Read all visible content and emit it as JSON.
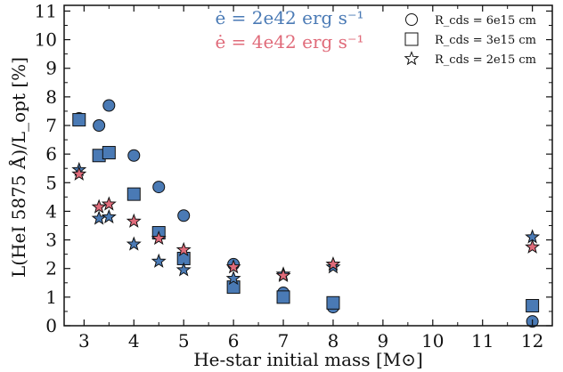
{
  "chart_data": {
    "type": "scatter",
    "xlabel": "He-star initial mass [M⊙]",
    "ylabel": "L(HeI 5875 Å)/L_opt [%]",
    "xlim": [
      2.6,
      12.4
    ],
    "ylim": [
      0,
      11.2
    ],
    "xticks": [
      3,
      4,
      5,
      6,
      7,
      8,
      9,
      10,
      11,
      12
    ],
    "yticks": [
      0,
      1,
      2,
      3,
      4,
      5,
      6,
      7,
      8,
      9,
      10,
      11
    ],
    "grid": false,
    "colors": {
      "blue": "#4a7ab5",
      "red": "#e06b7a"
    },
    "annotations": [
      {
        "text": "ė = 2e42 erg s⁻¹",
        "color": "#4a7ab5"
      },
      {
        "text": "ė = 4e42 erg s⁻¹",
        "color": "#e06b7a"
      }
    ],
    "legend": {
      "placement": "top-right",
      "entries": [
        {
          "marker": "circle",
          "label": "R_cds = 6e15 cm"
        },
        {
          "marker": "square",
          "label": "R_cds = 3e15 cm"
        },
        {
          "marker": "star",
          "label": "R_cds = 2e15 cm"
        }
      ]
    },
    "series": [
      {
        "marker": "circle",
        "color": "blue",
        "x": [
          2.9,
          3.3,
          3.5,
          4.0,
          4.5,
          5.0,
          6.0,
          7.0,
          8.0,
          12.0
        ],
        "y": [
          7.25,
          7.0,
          7.7,
          5.95,
          4.85,
          3.85,
          2.15,
          1.15,
          0.65,
          0.15
        ]
      },
      {
        "marker": "square",
        "color": "blue",
        "x": [
          2.9,
          3.3,
          3.5,
          4.0,
          4.5,
          5.0,
          6.0,
          7.0,
          8.0,
          12.0
        ],
        "y": [
          7.2,
          5.95,
          6.05,
          4.6,
          3.25,
          2.35,
          1.35,
          1.0,
          0.8,
          0.7
        ]
      },
      {
        "marker": "star",
        "color": "blue",
        "x": [
          2.9,
          3.3,
          3.5,
          4.0,
          4.5,
          5.0,
          6.0,
          7.0,
          8.0,
          12.0
        ],
        "y": [
          5.45,
          3.75,
          3.8,
          2.85,
          2.25,
          1.95,
          1.65,
          1.8,
          2.05,
          3.1
        ]
      },
      {
        "marker": "star",
        "color": "red",
        "x": [
          2.9,
          3.3,
          3.5,
          4.0,
          4.5,
          5.0,
          6.0,
          7.0,
          8.0,
          12.0
        ],
        "y": [
          5.3,
          4.15,
          4.25,
          3.65,
          3.05,
          2.65,
          2.05,
          1.75,
          2.15,
          2.75
        ]
      }
    ]
  }
}
